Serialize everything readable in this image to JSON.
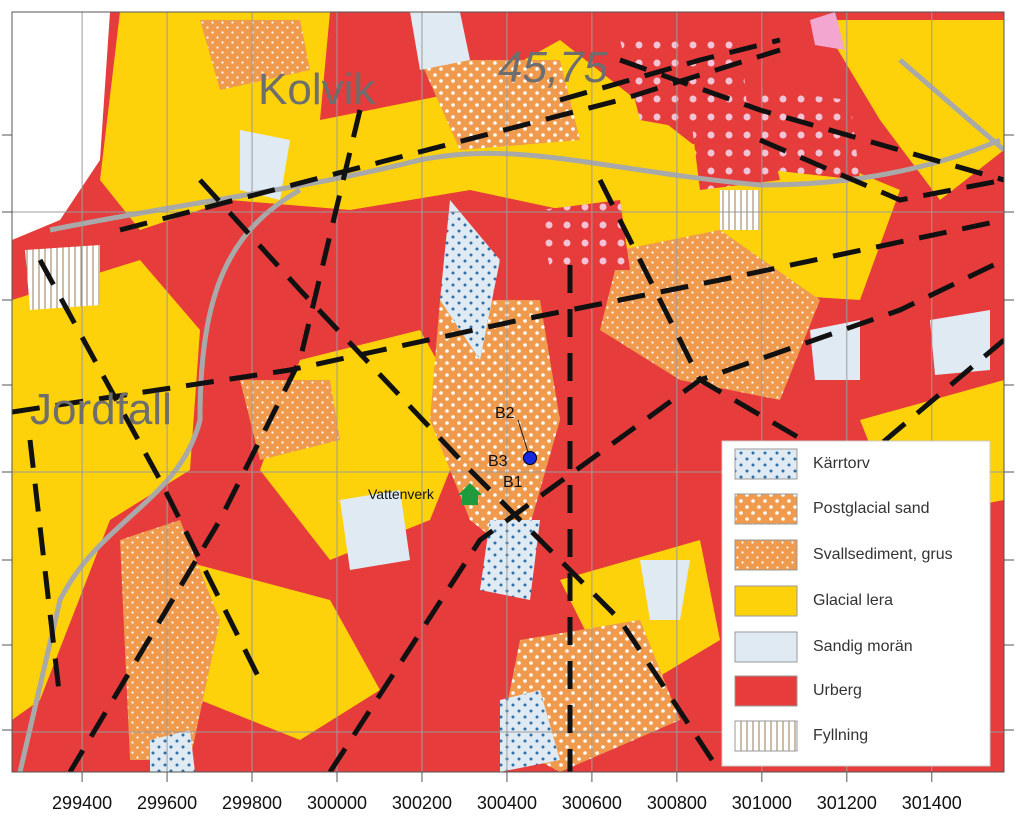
{
  "map": {
    "labels": {
      "kolvik": "Kolvik",
      "elevation": "45,75",
      "jordfall": "Jordfall",
      "b2": "B2",
      "b3": "B3",
      "b1": "B1",
      "vattenverk": "Vattenverk"
    },
    "legend": [
      "Kärrtorv",
      "Postglacial sand",
      "Svallsediment, grus",
      "Glacial lera",
      "Sandig morän",
      "Urberg",
      "Fyllning"
    ],
    "xlim": [
      299235,
      301570
    ],
    "xticks": [
      299400,
      299600,
      299800,
      300000,
      300200,
      300400,
      300600,
      300800,
      301000,
      301200,
      301400
    ]
  }
}
